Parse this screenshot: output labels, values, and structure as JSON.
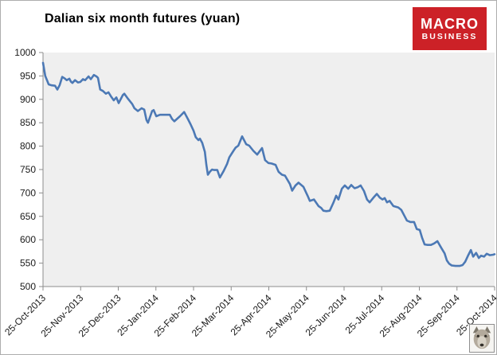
{
  "header": {
    "title": "Dalian six month futures (yuan)"
  },
  "logo": {
    "line1": "MACRO",
    "line2": "BUSINESS",
    "bg_color": "#CC2127",
    "text_color": "#FFFFFF"
  },
  "chart_data": {
    "type": "line",
    "title": "Dalian six month futures (yuan)",
    "xlabel": "",
    "ylabel": "",
    "ylim": [
      500,
      1000
    ],
    "y_ticks": [
      1000,
      950,
      900,
      850,
      800,
      750,
      700,
      650,
      600,
      550,
      500
    ],
    "x_tick_labels": [
      "25-Oct-2013",
      "25-Nov-2013",
      "25-Dec-2013",
      "25-Jan-2014",
      "25-Feb-2014",
      "25-Mar-2014",
      "25-Apr-2014",
      "25-May-2014",
      "25-Jun-2014",
      "25-Jul-2014",
      "25-Aug-2014",
      "25-Sep-2014",
      "25-Oct-2014"
    ],
    "grid": false,
    "legend": "none",
    "plot_bg": "#EFEFEF",
    "line_color": "#4C79B5",
    "axis_color": "#8C8C8C",
    "label_color": "#1A1A1A",
    "series": [
      {
        "name": "Dalian six month futures (yuan)",
        "x_unit": "months since 25-Oct-2013",
        "points": [
          [
            0,
            978
          ],
          [
            0.06,
            950
          ],
          [
            0.11,
            940
          ],
          [
            0.15,
            932
          ],
          [
            0.23,
            930
          ],
          [
            0.32,
            929
          ],
          [
            0.38,
            921
          ],
          [
            0.44,
            930
          ],
          [
            0.51,
            948
          ],
          [
            0.57,
            945
          ],
          [
            0.63,
            941
          ],
          [
            0.7,
            944
          ],
          [
            0.74,
            938
          ],
          [
            0.78,
            935
          ],
          [
            0.85,
            941
          ],
          [
            0.93,
            936
          ],
          [
            0.99,
            937
          ],
          [
            1.06,
            943
          ],
          [
            1.12,
            941
          ],
          [
            1.21,
            949
          ],
          [
            1.27,
            943
          ],
          [
            1.35,
            952
          ],
          [
            1.42,
            949
          ],
          [
            1.46,
            946
          ],
          [
            1.52,
            921
          ],
          [
            1.59,
            918
          ],
          [
            1.67,
            912
          ],
          [
            1.74,
            915
          ],
          [
            1.8,
            907
          ],
          [
            1.88,
            898
          ],
          [
            1.95,
            904
          ],
          [
            2.01,
            892
          ],
          [
            2.12,
            909
          ],
          [
            2.16,
            912
          ],
          [
            2.26,
            901
          ],
          [
            2.37,
            890
          ],
          [
            2.43,
            881
          ],
          [
            2.52,
            875
          ],
          [
            2.62,
            881
          ],
          [
            2.69,
            878
          ],
          [
            2.75,
            856
          ],
          [
            2.79,
            850
          ],
          [
            2.9,
            875
          ],
          [
            2.94,
            877
          ],
          [
            3.01,
            864
          ],
          [
            3.11,
            867
          ],
          [
            3.37,
            867
          ],
          [
            3.43,
            858
          ],
          [
            3.49,
            853
          ],
          [
            3.64,
            864
          ],
          [
            3.75,
            873
          ],
          [
            3.85,
            858
          ],
          [
            3.92,
            847
          ],
          [
            4,
            833
          ],
          [
            4.06,
            819
          ],
          [
            4.13,
            813
          ],
          [
            4.17,
            816
          ],
          [
            4.23,
            807
          ],
          [
            4.3,
            788
          ],
          [
            4.34,
            760
          ],
          [
            4.38,
            739
          ],
          [
            4.44,
            746
          ],
          [
            4.49,
            750
          ],
          [
            4.55,
            749
          ],
          [
            4.63,
            749
          ],
          [
            4.7,
            733
          ],
          [
            4.8,
            747
          ],
          [
            4.89,
            762
          ],
          [
            4.95,
            776
          ],
          [
            5.06,
            790
          ],
          [
            5.12,
            797
          ],
          [
            5.19,
            801
          ],
          [
            5.29,
            821
          ],
          [
            5.4,
            804
          ],
          [
            5.48,
            801
          ],
          [
            5.59,
            790
          ],
          [
            5.69,
            782
          ],
          [
            5.82,
            796
          ],
          [
            5.9,
            770
          ],
          [
            5.99,
            764
          ],
          [
            6.07,
            763
          ],
          [
            6.18,
            760
          ],
          [
            6.26,
            745
          ],
          [
            6.35,
            739
          ],
          [
            6.43,
            737
          ],
          [
            6.56,
            719
          ],
          [
            6.62,
            705
          ],
          [
            6.71,
            716
          ],
          [
            6.79,
            722
          ],
          [
            6.92,
            713
          ],
          [
            7.03,
            694
          ],
          [
            7.09,
            683
          ],
          [
            7.2,
            686
          ],
          [
            7.32,
            672
          ],
          [
            7.39,
            668
          ],
          [
            7.45,
            662
          ],
          [
            7.53,
            661
          ],
          [
            7.62,
            662
          ],
          [
            7.72,
            680
          ],
          [
            7.79,
            694
          ],
          [
            7.85,
            686
          ],
          [
            7.94,
            709
          ],
          [
            8.02,
            716
          ],
          [
            8.11,
            709
          ],
          [
            8.19,
            717
          ],
          [
            8.28,
            710
          ],
          [
            8.36,
            712
          ],
          [
            8.44,
            716
          ],
          [
            8.53,
            704
          ],
          [
            8.61,
            686
          ],
          [
            8.68,
            680
          ],
          [
            8.78,
            690
          ],
          [
            8.87,
            698
          ],
          [
            8.95,
            690
          ],
          [
            9.02,
            686
          ],
          [
            9.08,
            689
          ],
          [
            9.14,
            680
          ],
          [
            9.21,
            683
          ],
          [
            9.31,
            672
          ],
          [
            9.44,
            669
          ],
          [
            9.52,
            664
          ],
          [
            9.61,
            650
          ],
          [
            9.67,
            641
          ],
          [
            9.76,
            638
          ],
          [
            9.86,
            638
          ],
          [
            9.93,
            623
          ],
          [
            10.01,
            621
          ],
          [
            10.07,
            605
          ],
          [
            10.14,
            590
          ],
          [
            10.22,
            589
          ],
          [
            10.31,
            589
          ],
          [
            10.39,
            592
          ],
          [
            10.48,
            597
          ],
          [
            10.58,
            583
          ],
          [
            10.67,
            571
          ],
          [
            10.73,
            556
          ],
          [
            10.79,
            549
          ],
          [
            10.86,
            545
          ],
          [
            10.96,
            544
          ],
          [
            11.07,
            544
          ],
          [
            11.15,
            546
          ],
          [
            11.22,
            553
          ],
          [
            11.3,
            567
          ],
          [
            11.37,
            578
          ],
          [
            11.43,
            564
          ],
          [
            11.51,
            572
          ],
          [
            11.58,
            561
          ],
          [
            11.64,
            566
          ],
          [
            11.72,
            564
          ],
          [
            11.79,
            570
          ],
          [
            11.87,
            567
          ],
          [
            11.96,
            568
          ],
          [
            12,
            569
          ]
        ]
      }
    ]
  }
}
